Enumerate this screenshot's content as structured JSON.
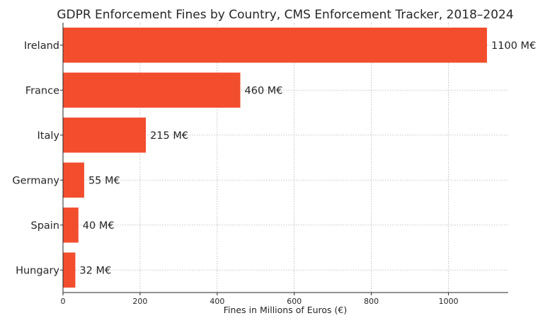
{
  "chart_data": {
    "type": "bar",
    "orientation": "horizontal",
    "title": "GDPR Enforcement Fines by Country, CMS Enforcement Tracker, 2018–2024",
    "xlabel": "Fines in Millions of Euros (€)",
    "ylabel": "",
    "categories": [
      "Ireland",
      "France",
      "Italy",
      "Germany",
      "Spain",
      "Hungary"
    ],
    "values": [
      1100,
      460,
      215,
      55,
      40,
      32
    ],
    "data_labels": [
      "1100 M€",
      "460 M€",
      "215 M€",
      "55 M€",
      "40 M€",
      "32 M€"
    ],
    "xlim": [
      0,
      1155
    ],
    "xticks": [
      0,
      200,
      400,
      600,
      800,
      1000
    ],
    "grid": true,
    "bar_color": "#f24e2e"
  }
}
